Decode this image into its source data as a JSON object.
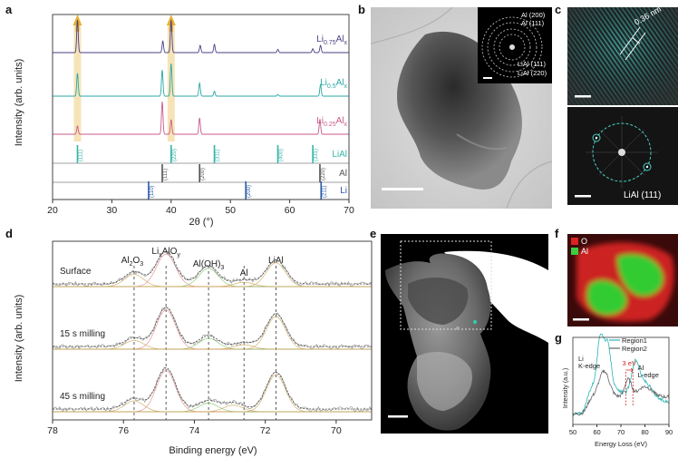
{
  "panel_labels": {
    "a": "a",
    "b": "b",
    "c": "c",
    "d": "d",
    "e": "e",
    "f": "f",
    "g": "g"
  },
  "colors": {
    "li075": "#4a3f86",
    "li05": "#2aa6a6",
    "li025": "#c85a8a",
    "liai_ref": "#35b5a5",
    "al_ref": "#555555",
    "li_ref": "#2a5aa8",
    "highlight": "#f3dba0",
    "arrow": "#e8b030",
    "xps_data": "#9a9a9a",
    "xps_fit": "#e08080",
    "fit_green": "#7bbf5a",
    "fit_tan": "#c8a050",
    "eels_r1": "#2ab4b4",
    "eels_r2": "#666666",
    "eels_mark": "#d02020",
    "map_o": "#dd2222",
    "map_al": "#3dcc3d"
  },
  "chart_data": [
    {
      "type": "line",
      "panel": "a",
      "title": "",
      "xlabel": "2θ (°)",
      "ylabel": "Intensity (arb. units)",
      "xlim": [
        20,
        70
      ],
      "xticks": [
        "20",
        "30",
        "40",
        "50",
        "60",
        "70"
      ],
      "series": [
        {
          "name": "Li0.75Alx",
          "label_main": "Li",
          "label_sub1": "0.75",
          "label_mid": "Al",
          "label_sub2": "x",
          "peaks": [
            [
              24.2,
              1.0
            ],
            [
              38.6,
              0.35
            ],
            [
              40.0,
              1.0
            ],
            [
              44.9,
              0.22
            ],
            [
              47.3,
              0.25
            ],
            [
              58.0,
              0.1
            ],
            [
              63.9,
              0.12
            ],
            [
              65.2,
              0.22
            ]
          ]
        },
        {
          "name": "Li0.5Alx",
          "label_main": "Li",
          "label_sub1": "0.5",
          "label_mid": "Al",
          "label_sub2": "x",
          "peaks": [
            [
              24.2,
              0.7
            ],
            [
              38.5,
              0.8
            ],
            [
              40.0,
              1.0
            ],
            [
              44.8,
              0.4
            ],
            [
              47.3,
              0.15
            ],
            [
              58.0,
              0.05
            ],
            [
              65.2,
              0.35
            ]
          ]
        },
        {
          "name": "Li0.25Alx",
          "label_main": "Li",
          "label_sub1": "0.25",
          "label_mid": "Al",
          "label_sub2": "x",
          "peaks": [
            [
              24.2,
              0.25
            ],
            [
              38.5,
              1.0
            ],
            [
              40.0,
              0.45
            ],
            [
              44.8,
              0.5
            ],
            [
              65.1,
              0.45
            ]
          ]
        }
      ],
      "references": [
        {
          "name": "LiAl",
          "lines": [
            [
              24.2,
              "(111)"
            ],
            [
              40.0,
              "(220)"
            ],
            [
              47.3,
              "(311)"
            ],
            [
              58.0,
              "(400)"
            ],
            [
              63.9,
              "(331)"
            ]
          ]
        },
        {
          "name": "Al",
          "lines": [
            [
              38.5,
              "(111)"
            ],
            [
              44.8,
              "(200)"
            ],
            [
              65.1,
              "(220)"
            ]
          ]
        },
        {
          "name": "Li",
          "lines": [
            [
              36.2,
              "(110)"
            ],
            [
              52.6,
              "(200)"
            ],
            [
              65.3,
              "(211)"
            ]
          ]
        }
      ],
      "highlight_positions": [
        24.2,
        40.0
      ]
    },
    {
      "type": "line",
      "panel": "d",
      "xlabel": "Binding energy (eV)",
      "ylabel": "Intensity (arb. units)",
      "xlim": [
        78,
        69
      ],
      "xticks": [
        "78",
        "76",
        "74",
        "72",
        "70"
      ],
      "components": [
        {
          "name": "Al2O3",
          "pos": 75.7
        },
        {
          "name": "LixAlOy",
          "pos": 74.8
        },
        {
          "name": "Al(OH)3",
          "pos": 73.6
        },
        {
          "name": "Al",
          "pos": 72.6
        },
        {
          "name": "LiAl",
          "pos": 71.7
        }
      ],
      "spectra": [
        {
          "name": "Surface",
          "fit": [
            [
              75.7,
              0.28
            ],
            [
              74.8,
              0.75
            ],
            [
              73.6,
              0.42
            ],
            [
              72.6,
              0.1
            ],
            [
              71.7,
              0.55
            ]
          ]
        },
        {
          "name": "15 s milling",
          "fit": [
            [
              75.7,
              0.2
            ],
            [
              74.8,
              0.9
            ],
            [
              73.6,
              0.25
            ],
            [
              72.6,
              0.1
            ],
            [
              71.7,
              0.75
            ]
          ]
        },
        {
          "name": "45 s milling",
          "fit": [
            [
              75.7,
              0.25
            ],
            [
              74.8,
              0.95
            ],
            [
              73.6,
              0.2
            ],
            [
              72.9,
              0.15
            ],
            [
              71.7,
              0.85
            ]
          ]
        }
      ]
    },
    {
      "type": "line",
      "panel": "g",
      "xlabel": "Energy Loss (eV)",
      "ylabel": "Intensity (a.u.)",
      "xlim": [
        50,
        90
      ],
      "xticks": [
        "50",
        "60",
        "70",
        "80",
        "90"
      ],
      "series": [
        {
          "name": "Region1"
        },
        {
          "name": "Region2"
        }
      ],
      "annotations": {
        "li_edge": "Li\nK-edge",
        "al_edge": "Al\nL-edge",
        "shift": "3 eV"
      }
    }
  ],
  "panel_b": {
    "saed_labels": [
      "Al (200)",
      "Al (111)",
      "LiAl (111)",
      "LiAl (220)"
    ]
  },
  "panel_c": {
    "spacing": "0.36 nm",
    "fft_label": "LiAl (111)"
  },
  "panel_f": {
    "legend": [
      "O",
      "Al"
    ]
  }
}
